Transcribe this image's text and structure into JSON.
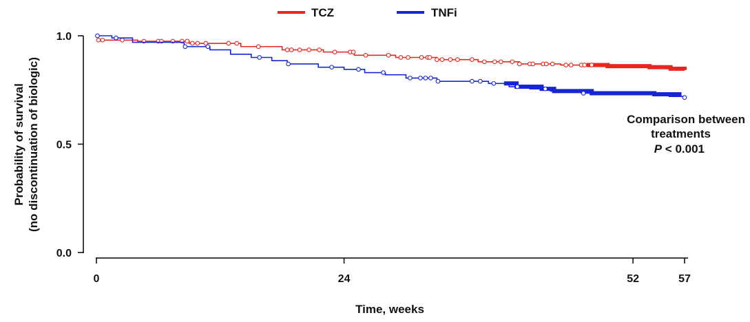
{
  "chart_data": {
    "type": "line",
    "subtype": "kaplan-meier step plot with censor marks",
    "xlabel": "Time, weeks",
    "ylabel": [
      "Probability of survival",
      "(no discontinuation of biologic)"
    ],
    "xlim": [
      0,
      57
    ],
    "ylim": [
      0,
      1
    ],
    "x_ticks": [
      0,
      24,
      52,
      57
    ],
    "y_ticks": [
      0.0,
      0.5,
      1.0
    ],
    "y_tick_labels": [
      "0.0",
      "0.5",
      "1.0"
    ],
    "legend_position": "top",
    "grid": false,
    "annotation": {
      "line1": "Comparison between",
      "line2": "treatments",
      "p_symbol": "P",
      "p_rest": " < 0.001"
    },
    "series": [
      {
        "name": "TCZ",
        "color": "#e8251f",
        "steps": [
          [
            0,
            0.98
          ],
          [
            4,
            0.975
          ],
          [
            9,
            0.965
          ],
          [
            14,
            0.95
          ],
          [
            18,
            0.935
          ],
          [
            22,
            0.925
          ],
          [
            25,
            0.91
          ],
          [
            29,
            0.9
          ],
          [
            33,
            0.89
          ],
          [
            37,
            0.88
          ],
          [
            41,
            0.87
          ],
          [
            45,
            0.865
          ],
          [
            49,
            0.86
          ],
          [
            53,
            0.855
          ],
          [
            55,
            0.848
          ],
          [
            57,
            0.842
          ]
        ],
        "censored": [
          0.2,
          0.6,
          2.5,
          4.6,
          6,
          6.3,
          7.4,
          8.3,
          8.8,
          9.3,
          9.8,
          10.6,
          12.8,
          13.6,
          15.7,
          18.5,
          18.9,
          19.7,
          20.6,
          21.6,
          23.1,
          24.6,
          24.9,
          26.1,
          28.3,
          29.5,
          30.2,
          31.5,
          32.1,
          32.3,
          33,
          33.5,
          34.3,
          35,
          36.4,
          37.6,
          38.6,
          39.2,
          40.3,
          41,
          42,
          42.3,
          43.3,
          43.6,
          44.2,
          45.5,
          46,
          47,
          47.3,
          48
        ],
        "dense_censor_range": [
          47.5,
          57
        ]
      },
      {
        "name": "TNFi",
        "color": "#1626d6",
        "steps": [
          [
            0,
            1.0
          ],
          [
            1.5,
            0.99
          ],
          [
            3.5,
            0.97
          ],
          [
            8.5,
            0.95
          ],
          [
            11,
            0.935
          ],
          [
            13,
            0.915
          ],
          [
            15,
            0.9
          ],
          [
            17,
            0.885
          ],
          [
            18.5,
            0.87
          ],
          [
            21.5,
            0.855
          ],
          [
            24,
            0.845
          ],
          [
            26,
            0.83
          ],
          [
            28,
            0.82
          ],
          [
            30,
            0.805
          ],
          [
            33,
            0.79
          ],
          [
            38,
            0.78
          ],
          [
            40,
            0.765
          ],
          [
            42,
            0.755
          ],
          [
            44,
            0.745
          ],
          [
            47,
            0.735
          ],
          [
            53,
            0.73
          ],
          [
            55.5,
            0.72
          ],
          [
            57,
            0.715
          ]
        ],
        "censored": [
          0.1,
          1.9,
          8.6,
          10.8,
          15.8,
          18.6,
          22.8,
          25.4,
          27.8,
          30.4,
          31.4,
          31.9,
          32.4,
          33.1,
          36.4,
          37.2,
          38.5,
          40.8,
          43.5,
          47.2,
          57
        ],
        "dense_censor_range": [
          39.5,
          56.5
        ]
      }
    ]
  }
}
